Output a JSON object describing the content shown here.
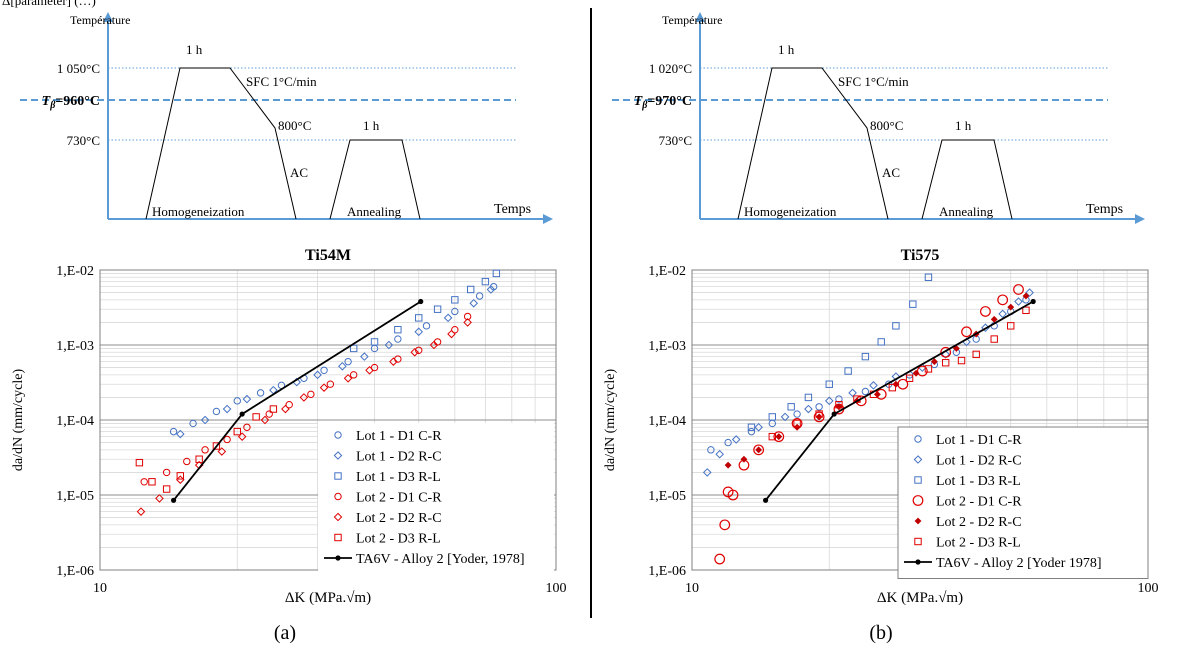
{
  "header_fragment": "Δ[parameter] (…)",
  "panels": [
    {
      "label": "(a)",
      "heat_treatment": {
        "y_axis_label": "Température",
        "x_axis_label": "Temps",
        "t_high": "1 050°C",
        "t_beta_prefix": "T",
        "t_beta_sub": "β",
        "t_beta_value": "=960°C",
        "t_anneal": "730°C",
        "hold_high": "1 h",
        "hold_anneal": "1 h",
        "cooling": "SFC 1°C/min",
        "t_800": "800°C",
        "ac": "AC",
        "phase_1": "Homogeneization",
        "phase_2": "Annealing"
      },
      "chart_data": {
        "type": "scatter",
        "title": "Ti54M",
        "xlabel": "ΔK (MPa.√m)",
        "ylabel": "da/dN (mm/cycle)",
        "x_scale": "log",
        "y_scale": "log",
        "xlim": [
          10,
          100
        ],
        "ylim": [
          1e-06,
          0.01
        ],
        "x_ticks": [
          "10",
          "100"
        ],
        "y_ticks": [
          "1,E-06",
          "1,E-05",
          "1,E-04",
          "1,E-03",
          "1,E-02"
        ],
        "grid": true,
        "legend_position": "bottom-right",
        "series": [
          {
            "name": "Lot 1 - D1 C-R",
            "color": "#4472c4",
            "marker": "circle",
            "x": [
              14.5,
              16,
              18,
              20,
              22.5,
              25,
              28,
              31,
              35,
              40,
              45,
              52,
              60,
              68,
              73
            ],
            "y": [
              7e-05,
              9e-05,
              0.00013,
              0.00018,
              0.00023,
              0.00029,
              0.00036,
              0.00046,
              0.0006,
              0.0009,
              0.0012,
              0.0018,
              0.0028,
              0.0045,
              0.006
            ]
          },
          {
            "name": "Lot 1 - D2 R-C",
            "color": "#4472c4",
            "marker": "diamond",
            "x": [
              15,
              17,
              19,
              21,
              24,
              27,
              30,
              34,
              38,
              43,
              50,
              58,
              66,
              72
            ],
            "y": [
              6.5e-05,
              0.0001,
              0.00014,
              0.00019,
              0.00025,
              0.00032,
              0.0004,
              0.00052,
              0.0007,
              0.001,
              0.0015,
              0.0023,
              0.0036,
              0.0055
            ]
          },
          {
            "name": "Lot 1 - D3 R-L",
            "color": "#4472c4",
            "marker": "square",
            "x": [
              36,
              40,
              45,
              50,
              55,
              60,
              65,
              70,
              74
            ],
            "y": [
              0.0009,
              0.0011,
              0.0016,
              0.0023,
              0.003,
              0.004,
              0.0055,
              0.007,
              0.009
            ]
          },
          {
            "name": "Lot 2 - D1 C-R",
            "color": "#e00000",
            "marker": "circle",
            "x": [
              12.5,
              14,
              15.5,
              17,
              19,
              21,
              23.5,
              26,
              29,
              32,
              36,
              40,
              45,
              50,
              55,
              60,
              64
            ],
            "y": [
              1.5e-05,
              2e-05,
              2.8e-05,
              4e-05,
              5.5e-05,
              8e-05,
              0.00012,
              0.00016,
              0.00022,
              0.0003,
              0.0004,
              0.0005,
              0.00065,
              0.00085,
              0.0011,
              0.0016,
              0.0024
            ]
          },
          {
            "name": "Lot 2 - D2 R-C",
            "color": "#e00000",
            "marker": "diamond",
            "x": [
              12.3,
              13.5,
              15,
              16.5,
              18.5,
              20.5,
              23,
              25.5,
              28,
              31,
              35,
              39,
              44,
              49,
              54,
              59,
              64
            ],
            "y": [
              6e-06,
              9e-06,
              1.6e-05,
              2.5e-05,
              3.8e-05,
              6e-05,
              0.0001,
              0.00014,
              0.0002,
              0.00027,
              0.00036,
              0.00046,
              0.0006,
              0.0008,
              0.001,
              0.0014,
              0.002
            ]
          },
          {
            "name": "Lot 2 - D3 R-L",
            "color": "#e00000",
            "marker": "square",
            "x": [
              12.2,
              13,
              14,
              15,
              16.5,
              18,
              20,
              22,
              24
            ],
            "y": [
              2.7e-05,
              1.5e-05,
              1.2e-05,
              1.8e-05,
              3e-05,
              4.5e-05,
              7e-05,
              0.00011,
              0.00014
            ]
          },
          {
            "name": "TA6V - Alloy 2 [Yoder, 1978]",
            "color": "#000000",
            "marker": "line",
            "x": [
              14.5,
              20.5,
              50.5
            ],
            "y": [
              8.5e-06,
              0.00012,
              0.0038
            ]
          }
        ]
      }
    },
    {
      "label": "(b)",
      "heat_treatment": {
        "y_axis_label": "Température",
        "x_axis_label": "Temps",
        "t_high": "1 020°C",
        "t_beta_prefix": "T",
        "t_beta_sub": "β",
        "t_beta_value": "=970°C",
        "t_anneal": "730°C",
        "hold_high": "1 h",
        "hold_anneal": "1 h",
        "cooling": "SFC 1°C/min",
        "t_800": "800°C",
        "ac": "AC",
        "phase_1": "Homogeneization",
        "phase_2": "Annealing"
      },
      "chart_data": {
        "type": "scatter",
        "title": "Ti575",
        "xlabel": "ΔK (MPa.√m)",
        "ylabel": "da/dN (mm/cycle)",
        "x_scale": "log",
        "y_scale": "log",
        "xlim": [
          10,
          100
        ],
        "ylim": [
          1e-06,
          0.01
        ],
        "x_ticks": [
          "10",
          "100"
        ],
        "y_ticks": [
          "1,E-06",
          "1,E-05",
          "1,E-04",
          "1,E-03",
          "1,E-02"
        ],
        "grid": true,
        "legend_position": "bottom-right",
        "series": [
          {
            "name": "Lot 1 - D1 C-R",
            "color": "#4472c4",
            "marker": "circle",
            "x": [
              11,
              12,
              13.5,
              15,
              17,
              19,
              21,
              24,
              27,
              30,
              34,
              38,
              42,
              46,
              50,
              54
            ],
            "y": [
              4e-05,
              5e-05,
              7e-05,
              9e-05,
              0.00012,
              0.00015,
              0.00019,
              0.00024,
              0.0003,
              0.0004,
              0.00055,
              0.0008,
              0.0012,
              0.0018,
              0.0028,
              0.004
            ]
          },
          {
            "name": "Lot 1 - D2 R-C",
            "color": "#4472c4",
            "marker": "diamond",
            "x": [
              10.8,
              11.5,
              12.5,
              14,
              16,
              18,
              20,
              22.5,
              25,
              28,
              32,
              36,
              40,
              44,
              48,
              52,
              55
            ],
            "y": [
              2e-05,
              3.5e-05,
              5.5e-05,
              8e-05,
              0.00011,
              0.00014,
              0.00018,
              0.00023,
              0.00029,
              0.00038,
              0.0005,
              0.00075,
              0.0011,
              0.0017,
              0.0026,
              0.0038,
              0.005
            ]
          },
          {
            "name": "Lot 1 - D3 R-L",
            "color": "#4472c4",
            "marker": "square",
            "x": [
              13.5,
              15,
              16.5,
              18,
              20,
              22,
              24,
              26,
              28,
              30.5,
              33
            ],
            "y": [
              8e-05,
              0.00011,
              0.00015,
              0.0002,
              0.0003,
              0.00045,
              0.0007,
              0.0011,
              0.0018,
              0.0035,
              0.008
            ]
          },
          {
            "name": "Lot 2 - D1 C-R",
            "color": "#e00000",
            "marker": "circle-open-large",
            "x": [
              11.5,
              11.8,
              12,
              12.3,
              13,
              14,
              15.5,
              17,
              19,
              21,
              23.5,
              26,
              29,
              32,
              36,
              40,
              44,
              48,
              52
            ],
            "y": [
              1.4e-06,
              4e-06,
              1.1e-05,
              1e-05,
              2.5e-05,
              4e-05,
              6e-05,
              9e-05,
              0.00011,
              0.00014,
              0.00018,
              0.00022,
              0.0003,
              0.00045,
              0.0008,
              0.0015,
              0.0028,
              0.004,
              0.0055
            ]
          },
          {
            "name": "Lot 2 - D2 R-C",
            "color": "#c00000",
            "marker": "diamond-filled",
            "x": [
              12,
              13,
              14,
              15.5,
              17,
              19,
              21,
              23,
              25.5,
              28,
              31,
              34,
              38,
              42,
              46,
              50,
              54
            ],
            "y": [
              2.5e-05,
              3e-05,
              4e-05,
              6e-05,
              8e-05,
              0.00011,
              0.00015,
              0.00018,
              0.00022,
              0.0003,
              0.00042,
              0.0006,
              0.0009,
              0.0014,
              0.0022,
              0.0032,
              0.0045
            ]
          },
          {
            "name": "Lot 2 - D3 R-L",
            "color": "#e00000",
            "marker": "square",
            "x": [
              15,
              17,
              19,
              21,
              23,
              25,
              27.5,
              30,
              33,
              36,
              39,
              42,
              46,
              50,
              54
            ],
            "y": [
              6e-05,
              9e-05,
              0.00012,
              0.00016,
              0.00019,
              0.00022,
              0.00027,
              0.00036,
              0.00048,
              0.00058,
              0.00062,
              0.00075,
              0.0012,
              0.0018,
              0.0029
            ]
          },
          {
            "name": "TA6V - Alloy 2 [Yoder 1978]",
            "color": "#000000",
            "marker": "line",
            "x": [
              14.5,
              20.5,
              56
            ],
            "y": [
              8.5e-06,
              0.00012,
              0.0038
            ]
          }
        ]
      }
    }
  ]
}
